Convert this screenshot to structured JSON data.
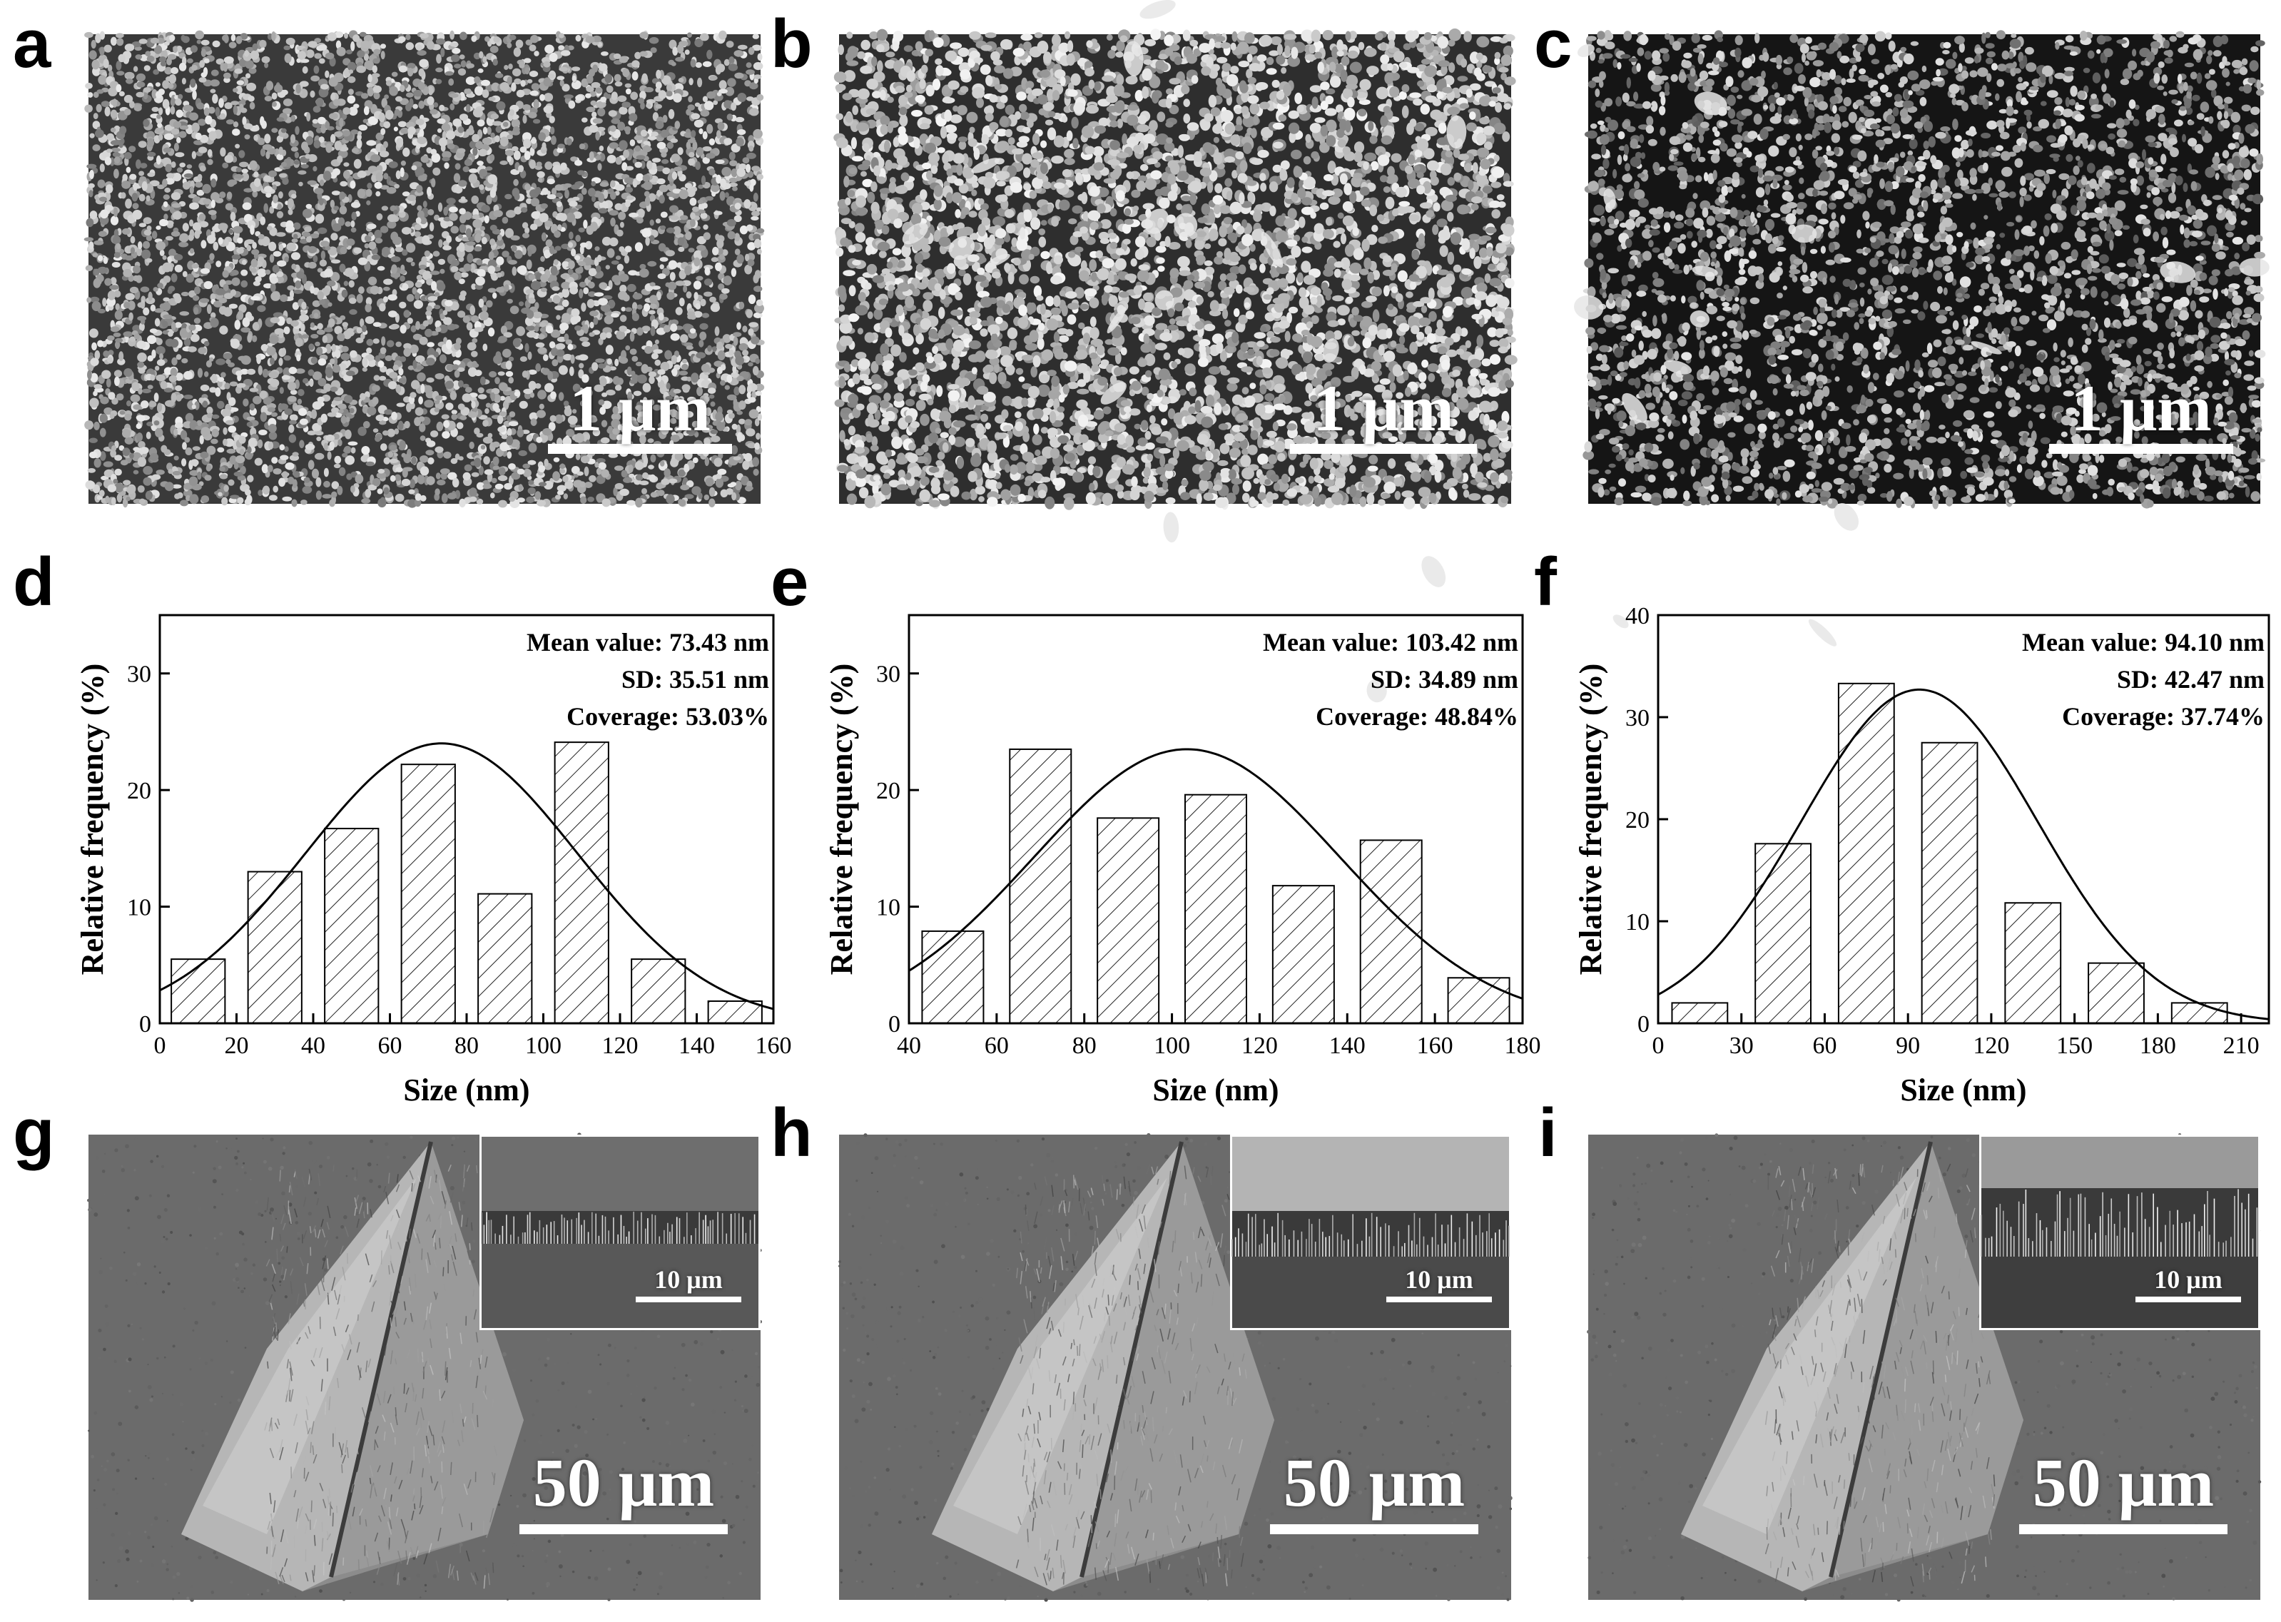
{
  "panels": {
    "a": {
      "letter": "a",
      "scale": "1 μm"
    },
    "b": {
      "letter": "b",
      "scale": "1 μm"
    },
    "c": {
      "letter": "c",
      "scale": "1 μm"
    },
    "d": {
      "letter": "d"
    },
    "e": {
      "letter": "e"
    },
    "f": {
      "letter": "f"
    },
    "g": {
      "letter": "g",
      "scale": "50 μm",
      "inset_scale": "10 μm"
    },
    "h": {
      "letter": "h",
      "scale": "50 μm",
      "inset_scale": "10 μm"
    },
    "i": {
      "letter": "i",
      "scale": "50 μm",
      "inset_scale": "10 μm"
    }
  },
  "colors": {
    "bar_fill": "#ffffff",
    "hatch": "#222222",
    "fit_line": "#000000",
    "sem_dark": "#2a2a2a",
    "sem_light": "#f0f0f0"
  },
  "chart_data": [
    {
      "id": "d",
      "type": "bar",
      "xlabel": "Size (nm)",
      "ylabel": "Relative frequency (%)",
      "xlim": [
        0,
        160
      ],
      "ylim": [
        0,
        35
      ],
      "xticks": [
        0,
        20,
        40,
        60,
        80,
        100,
        120,
        140,
        160
      ],
      "yticks": [
        0,
        10,
        20,
        30
      ],
      "bin_width": 14,
      "bins": [
        10,
        30,
        50,
        70,
        90,
        110,
        130,
        150
      ],
      "values": [
        5.5,
        13,
        16.7,
        22.2,
        11.1,
        24.1,
        5.5,
        1.9
      ],
      "fit": {
        "type": "gaussian",
        "mean": 73.43,
        "sd": 35.51,
        "peak": 24
      },
      "annotations": [
        "Mean value: 73.43 nm",
        "SD: 35.51 nm",
        "Coverage: 53.03%"
      ]
    },
    {
      "id": "e",
      "type": "bar",
      "xlabel": "Size (nm)",
      "ylabel": "Relative frequency (%)",
      "xlim": [
        40,
        180
      ],
      "ylim": [
        0,
        35
      ],
      "xticks": [
        40,
        60,
        80,
        100,
        120,
        140,
        160,
        180
      ],
      "yticks": [
        0,
        10,
        20,
        30
      ],
      "bin_width": 14,
      "bins": [
        50,
        70,
        90,
        110,
        130,
        150,
        170
      ],
      "values": [
        7.9,
        23.5,
        17.6,
        19.6,
        11.8,
        15.7,
        3.9
      ],
      "fit": {
        "type": "gaussian",
        "mean": 103.42,
        "sd": 34.89,
        "peak": 23.5
      },
      "annotations": [
        "Mean value: 103.42 nm",
        "SD: 34.89 nm",
        "Coverage: 48.84%"
      ]
    },
    {
      "id": "f",
      "type": "bar",
      "xlabel": "Size (nm)",
      "ylabel": "Relative frequency (%)",
      "xlim": [
        0,
        220
      ],
      "ylim": [
        0,
        40
      ],
      "xticks": [
        0,
        30,
        60,
        90,
        120,
        150,
        180,
        210
      ],
      "yticks": [
        0,
        10,
        20,
        30,
        40
      ],
      "bin_width": 20,
      "bins": [
        15,
        45,
        75,
        105,
        135,
        165,
        195
      ],
      "values": [
        2,
        17.6,
        33.3,
        27.5,
        11.8,
        5.9,
        2
      ],
      "fit": {
        "type": "gaussian",
        "mean": 94.1,
        "sd": 42.47,
        "peak": 32.7
      },
      "annotations": [
        "Mean value: 94.10 nm",
        "SD: 42.47 nm",
        "Coverage: 37.74%"
      ]
    }
  ]
}
